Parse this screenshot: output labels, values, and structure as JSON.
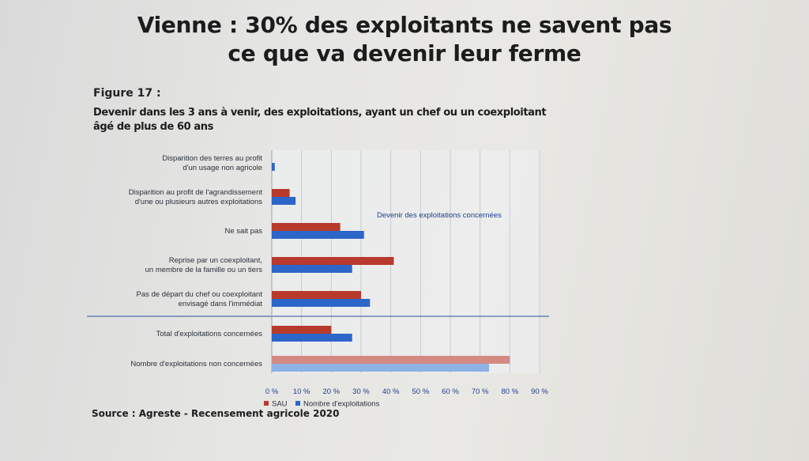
{
  "page": {
    "title_line1": "Vienne : 30% des exploitants ne savent pas",
    "title_line2": "ce que va devenir leur ferme",
    "figure_label": "Figure 17 :",
    "figure_subtitle_line1": "Devenir dans les 3 ans à venir, des exploitations, ayant un chef ou un coexploitant",
    "figure_subtitle_line2": "âgé de plus de 60 ans",
    "source": "Source : Agreste - Recensement agricole 2020"
  },
  "chart_data": {
    "type": "bar",
    "orientation": "horizontal",
    "categories": [
      [
        "Disparition des terres au profit",
        "d'un usage non agricole"
      ],
      [
        "Disparition au profit de l'agrandissement",
        "d'une ou plusieurs autres exploitations"
      ],
      [
        "Ne sait pas"
      ],
      [
        "Reprise par un coexploitant,",
        "un membre de la famille ou un tiers"
      ],
      [
        "Pas de départ du chef ou coexploitant",
        "envisagé dans l'immédiat"
      ],
      [
        "Total d'exploitations concernées"
      ],
      [
        "Nombre d'exploitations non concernées"
      ]
    ],
    "series": [
      {
        "name": "SAU",
        "color": "#b83a2c",
        "light_color": "#d48a82",
        "values": [
          0,
          6,
          23,
          41,
          30,
          20,
          80
        ]
      },
      {
        "name": "Nombre d'exploitations",
        "color": "#2c66c8",
        "light_color": "#8db3e6",
        "values": [
          1,
          8,
          31,
          27,
          33,
          27,
          73
        ]
      }
    ],
    "group_annotation": "Devenir des exploitations concernées",
    "x_ticks": [
      "0 %",
      "10 %",
      "20 %",
      "30 %",
      "40 %",
      "50 %",
      "60 %",
      "70 %",
      "80 %",
      "90 %"
    ],
    "xlim": [
      0,
      90
    ],
    "grid": true,
    "legend_position": "bottom-left"
  }
}
